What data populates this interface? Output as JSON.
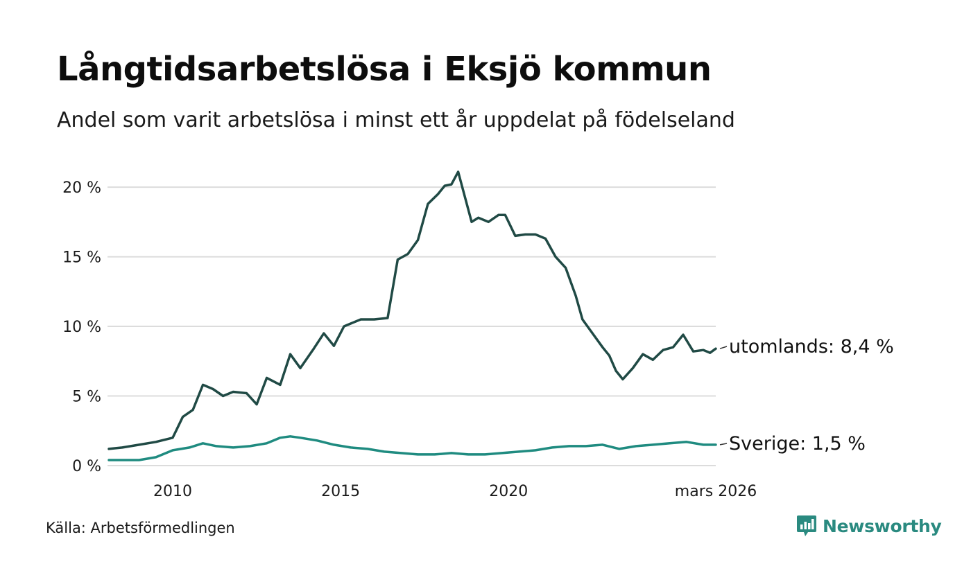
{
  "title": "Långtidsarbetslösa i Eksjö kommun",
  "subtitle": "Andel som varit arbetslösa i minst ett år uppdelat på födelseland",
  "source": "Källa: Arbetsförmedlingen",
  "brand": {
    "name": "Newsworthy",
    "icon": "newsworthy-logo-icon",
    "color": "#2a8a80"
  },
  "chart_data": {
    "type": "line",
    "title": "Långtidsarbetslösa i Eksjö kommun",
    "xlabel": "",
    "ylabel": "",
    "xlim": [
      2008.1,
      2026.17
    ],
    "ylim": [
      0,
      21
    ],
    "grid": true,
    "y_ticks": [
      {
        "value": 0,
        "label": "0 %"
      },
      {
        "value": 5,
        "label": "5 %"
      },
      {
        "value": 10,
        "label": "10 %"
      },
      {
        "value": 15,
        "label": "15 %"
      },
      {
        "value": 20,
        "label": "20 %"
      }
    ],
    "x_ticks": [
      {
        "value": 2010,
        "label": "2010"
      },
      {
        "value": 2015,
        "label": "2015"
      },
      {
        "value": 2020,
        "label": "2020"
      },
      {
        "value": 2026.17,
        "label": "mars 2026"
      }
    ],
    "series": [
      {
        "name": "utomlands",
        "end_label": "utomlands: 8,4 %",
        "color": "#204a45",
        "x": [
          2008.1,
          2008.5,
          2009.0,
          2009.5,
          2010.0,
          2010.3,
          2010.6,
          2010.9,
          2011.2,
          2011.5,
          2011.8,
          2012.2,
          2012.5,
          2012.8,
          2013.2,
          2013.5,
          2013.8,
          2014.2,
          2014.5,
          2014.8,
          2015.1,
          2015.3,
          2015.6,
          2016.0,
          2016.4,
          2016.7,
          2017.0,
          2017.3,
          2017.6,
          2017.9,
          2018.1,
          2018.3,
          2018.5,
          2018.7,
          2018.9,
          2019.1,
          2019.4,
          2019.7,
          2019.9,
          2020.2,
          2020.5,
          2020.8,
          2021.1,
          2021.4,
          2021.7,
          2022.0,
          2022.2,
          2022.5,
          2022.8,
          2023.0,
          2023.2,
          2023.4,
          2023.7,
          2024.0,
          2024.3,
          2024.6,
          2024.9,
          2025.2,
          2025.5,
          2025.8,
          2026.0,
          2026.17
        ],
        "values": [
          1.2,
          1.3,
          1.5,
          1.7,
          2.0,
          3.5,
          4.0,
          5.8,
          5.5,
          5.0,
          5.3,
          5.2,
          4.4,
          6.3,
          5.8,
          8.0,
          7.0,
          8.4,
          9.5,
          8.6,
          10.0,
          10.2,
          10.5,
          10.5,
          10.6,
          14.8,
          15.2,
          16.2,
          18.8,
          19.5,
          20.1,
          20.2,
          21.1,
          19.3,
          17.5,
          17.8,
          17.5,
          18.0,
          18.0,
          16.5,
          16.6,
          16.6,
          16.3,
          15.0,
          14.2,
          12.2,
          10.5,
          9.5,
          8.5,
          7.9,
          6.8,
          6.2,
          7.0,
          8.0,
          7.6,
          8.3,
          8.5,
          9.4,
          8.2,
          8.3,
          8.1,
          8.4
        ]
      },
      {
        "name": "Sverige",
        "end_label": "Sverige: 1,5 %",
        "color": "#1f8b80",
        "x": [
          2008.1,
          2008.5,
          2009.0,
          2009.5,
          2010.0,
          2010.5,
          2010.9,
          2011.3,
          2011.8,
          2012.3,
          2012.8,
          2013.2,
          2013.5,
          2013.8,
          2014.3,
          2014.8,
          2015.3,
          2015.8,
          2016.3,
          2016.8,
          2017.3,
          2017.8,
          2018.3,
          2018.8,
          2019.3,
          2019.8,
          2020.3,
          2020.8,
          2021.3,
          2021.8,
          2022.3,
          2022.8,
          2023.3,
          2023.8,
          2024.3,
          2024.8,
          2025.3,
          2025.8,
          2026.17
        ],
        "values": [
          0.4,
          0.4,
          0.4,
          0.6,
          1.1,
          1.3,
          1.6,
          1.4,
          1.3,
          1.4,
          1.6,
          2.0,
          2.1,
          2.0,
          1.8,
          1.5,
          1.3,
          1.2,
          1.0,
          0.9,
          0.8,
          0.8,
          0.9,
          0.8,
          0.8,
          0.9,
          1.0,
          1.1,
          1.3,
          1.4,
          1.4,
          1.5,
          1.2,
          1.4,
          1.5,
          1.6,
          1.7,
          1.5,
          1.5
        ]
      }
    ]
  }
}
